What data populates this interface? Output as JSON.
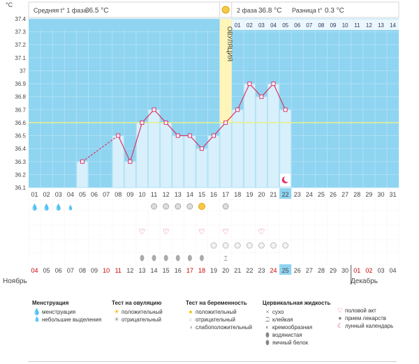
{
  "chart_data": {
    "type": "bar",
    "unit": "°C",
    "header": {
      "phase1_label": "Средняя t° 1 фаза",
      "phase1_value": "36.5 °C",
      "phase2_label": "2 фаза",
      "phase2_value": "36.8 °C",
      "diff_label": "Разница t°",
      "diff_value": "0.3 °C"
    },
    "ovulation_label": "ОВУЛЯЦИЯ",
    "ylim": [
      36.1,
      37.4
    ],
    "y_ticks": [
      "36.1",
      "36.2",
      "36.3",
      "36.4",
      "36.5",
      "36.6",
      "36.7",
      "36.8",
      "36.9",
      "37",
      "37.1",
      "37.2",
      "37.3",
      "37.4"
    ],
    "coverline": 36.6,
    "cycle_days": [
      "01",
      "02",
      "03",
      "04",
      "05",
      "06",
      "07",
      "08",
      "09",
      "10",
      "11",
      "12",
      "13",
      "14",
      "15",
      "16",
      "17",
      "18",
      "19",
      "20",
      "21",
      "22",
      "23",
      "24",
      "25",
      "26",
      "27",
      "28",
      "29",
      "30",
      "31"
    ],
    "post_ovulation_days": [
      "01",
      "02",
      "03",
      "04",
      "05",
      "06",
      "07",
      "08",
      "09",
      "10",
      "11",
      "12",
      "13",
      "14"
    ],
    "ovulation_day_index": 16,
    "temperatures": [
      null,
      null,
      null,
      null,
      36.3,
      null,
      null,
      36.5,
      36.3,
      36.6,
      36.7,
      36.6,
      36.5,
      36.5,
      36.4,
      36.5,
      36.6,
      36.7,
      36.9,
      36.8,
      36.9,
      36.7,
      null,
      null,
      null,
      null,
      null,
      null,
      null,
      null,
      null
    ],
    "current_day_index": 21,
    "dates": [
      "04",
      "05",
      "06",
      "07",
      "08",
      "09",
      "10",
      "11",
      "12",
      "13",
      "14",
      "15",
      "16",
      "17",
      "18",
      "19",
      "20",
      "21",
      "22",
      "23",
      "24",
      "25",
      "26",
      "27",
      "28",
      "29",
      "30",
      "01",
      "02",
      "03",
      "04"
    ],
    "date_colors": [
      "#cc0000",
      "#444444",
      "#444444",
      "#444444",
      "#444444",
      "#444444",
      "#cc0000",
      "#cc0000",
      "#444444",
      "#444444",
      "#444444",
      "#444444",
      "#444444",
      "#cc0000",
      "#cc0000",
      "#444444",
      "#444444",
      "#444444",
      "#444444",
      "#444444",
      "#cc0000",
      "#444444",
      "#444444",
      "#444444",
      "#444444",
      "#444444",
      "#444444",
      "#cc0000",
      "#cc0000",
      "#444444",
      "#444444"
    ],
    "today_date_index": 21,
    "months": [
      "Ноябрь",
      "Декабрь"
    ],
    "symbols": {
      "menstruation": [
        0,
        1,
        2
      ],
      "light_bleeding": [
        3
      ],
      "ovulation_test_positive": [
        14
      ],
      "ovulation_test_negative": [
        10,
        11,
        12,
        13,
        16
      ],
      "intercourse": [
        9,
        11,
        14,
        16,
        19
      ],
      "pregnancy_test_negative": [
        15,
        16,
        17,
        18,
        19,
        20,
        21
      ],
      "cervical_creamy": [
        9,
        10,
        11,
        12,
        13,
        14
      ],
      "cervical_sticky": [
        16
      ],
      "lunar_calendar": [
        21
      ]
    }
  },
  "legend": {
    "menstruation": {
      "title": "Менструация",
      "items": [
        {
          "icon": "drop-icon",
          "label": "менструация"
        },
        {
          "icon": "small-drop-icon",
          "label": "небольшие выделения"
        }
      ]
    },
    "ovulation_test": {
      "title": "Тест на овуляцию",
      "items": [
        {
          "icon": "sun-icon",
          "label": "положительный"
        },
        {
          "icon": "gray-sun-icon",
          "label": "отрицательный"
        }
      ]
    },
    "pregnancy_test": {
      "title": "Тест на беременность",
      "items": [
        {
          "icon": "yellow-circle-icon",
          "label": "положительный"
        },
        {
          "icon": "white-circle-icon",
          "label": "отрицательный"
        },
        {
          "icon": "half-circle-icon",
          "label": "слабоположительный"
        }
      ]
    },
    "cervical": {
      "title": "Цервикальная жидкость",
      "items": [
        {
          "icon": "cross-icon",
          "label": "сухо"
        },
        {
          "icon": "sticky-icon",
          "label": "клейкая"
        },
        {
          "icon": "creamy-icon",
          "label": "кремообразная"
        },
        {
          "icon": "watery-icon",
          "label": "водянистая"
        },
        {
          "icon": "eggwhite-icon",
          "label": "яичный белок"
        }
      ]
    },
    "other": {
      "items": [
        {
          "icon": "heart-icon",
          "label": "половой акт"
        },
        {
          "icon": "pill-icon",
          "label": "прием лекарств"
        },
        {
          "icon": "moon-icon",
          "label": "лунный календарь"
        }
      ]
    }
  }
}
